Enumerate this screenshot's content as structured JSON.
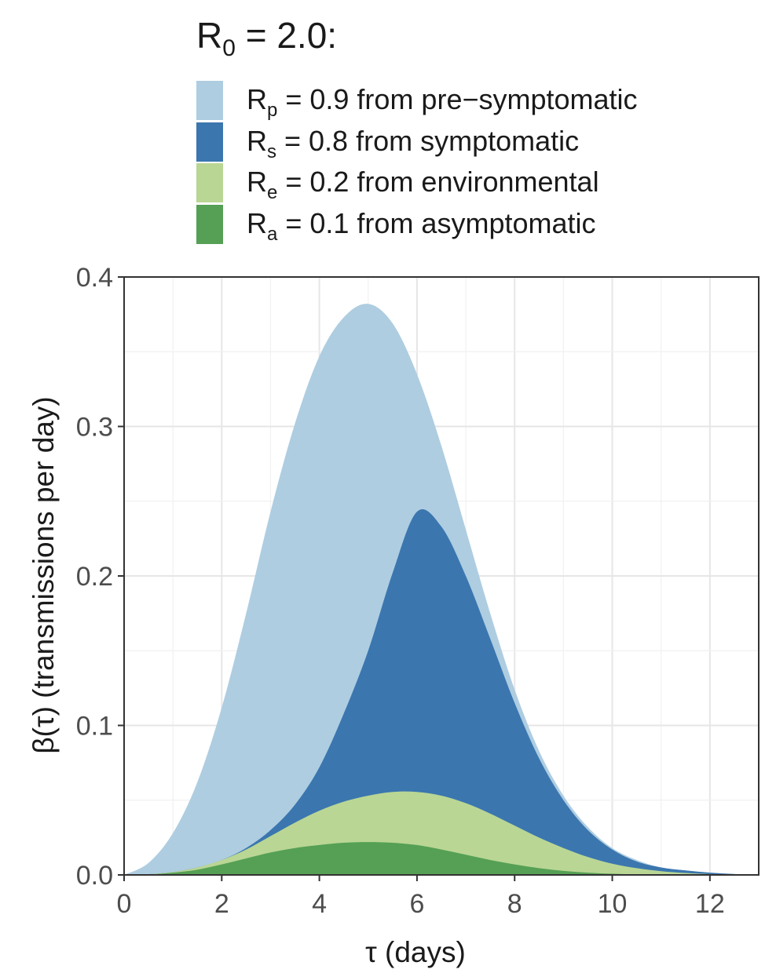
{
  "chart_data": {
    "type": "area",
    "stacked": true,
    "legend_title": "R0 = 2.0:",
    "legend_title_main": "R",
    "legend_title_sub": "0",
    "legend_title_rest": " = 2.0:",
    "legend_position": "top",
    "xlabel": "τ (days)",
    "ylabel": "β(τ)  (transmissions per day)",
    "xlim": [
      0,
      13
    ],
    "ylim": [
      0,
      0.4
    ],
    "x_ticks": [
      "0",
      "2",
      "4",
      "6",
      "8",
      "10",
      "12"
    ],
    "y_ticks": [
      "0.0",
      "0.1",
      "0.2",
      "0.3",
      "0.4"
    ],
    "grid": true,
    "x": [
      0,
      0.5,
      1,
      1.5,
      2,
      2.5,
      3,
      3.5,
      4,
      4.5,
      5,
      5.5,
      6,
      6.5,
      7,
      7.5,
      8,
      8.5,
      9,
      9.5,
      10,
      10.5,
      11,
      11.5,
      12,
      12.5,
      13
    ],
    "series": [
      {
        "name": "Rp = 0.9 from pre−symptomatic",
        "label_main": "R",
        "label_sub": "p",
        "label_rest": " = 0.9 from pre−symptomatic",
        "color": "#aecde1",
        "stack_top": [
          0,
          0.008,
          0.028,
          0.062,
          0.112,
          0.175,
          0.243,
          0.302,
          0.347,
          0.373,
          0.382,
          0.369,
          0.335,
          0.287,
          0.231,
          0.175,
          0.124,
          0.083,
          0.053,
          0.032,
          0.018,
          0.01,
          0.005,
          0.003,
          0.0015,
          0.0006,
          0.0002
        ]
      },
      {
        "name": "Rs = 0.8 from symptomatic",
        "label_main": "R",
        "label_sub": "s",
        "label_rest": " = 0.8 from symptomatic",
        "color": "#3b76af",
        "stack_top": [
          0,
          0.0005,
          0.002,
          0.005,
          0.01,
          0.018,
          0.03,
          0.047,
          0.072,
          0.108,
          0.15,
          0.202,
          0.243,
          0.233,
          0.2,
          0.158,
          0.115,
          0.078,
          0.05,
          0.03,
          0.017,
          0.009,
          0.005,
          0.003,
          0.0015,
          0.0006,
          0.0002
        ]
      },
      {
        "name": "Re = 0.2 from environmental",
        "label_main": "R",
        "label_sub": "e",
        "label_rest": " = 0.2 from environmental",
        "color": "#b9d694",
        "stack_top": [
          0,
          0.0005,
          0.002,
          0.005,
          0.01,
          0.017,
          0.026,
          0.035,
          0.043,
          0.049,
          0.053,
          0.0555,
          0.0555,
          0.053,
          0.048,
          0.041,
          0.033,
          0.025,
          0.018,
          0.012,
          0.0075,
          0.0045,
          0.0025,
          0.0013,
          0.0006,
          0.0002,
          0.0001
        ]
      },
      {
        "name": "Ra = 0.1 from asymptomatic",
        "label_main": "R",
        "label_sub": "a",
        "label_rest": " = 0.1 from asymptomatic",
        "color": "#55a055",
        "stack_top": [
          0,
          0.0003,
          0.0015,
          0.0035,
          0.007,
          0.011,
          0.015,
          0.018,
          0.02,
          0.0215,
          0.022,
          0.0215,
          0.02,
          0.017,
          0.0135,
          0.01,
          0.007,
          0.0045,
          0.0027,
          0.0015,
          0.0008,
          0.0004,
          0.0002,
          0.0001,
          5e-05,
          2e-05,
          0
        ]
      }
    ]
  }
}
